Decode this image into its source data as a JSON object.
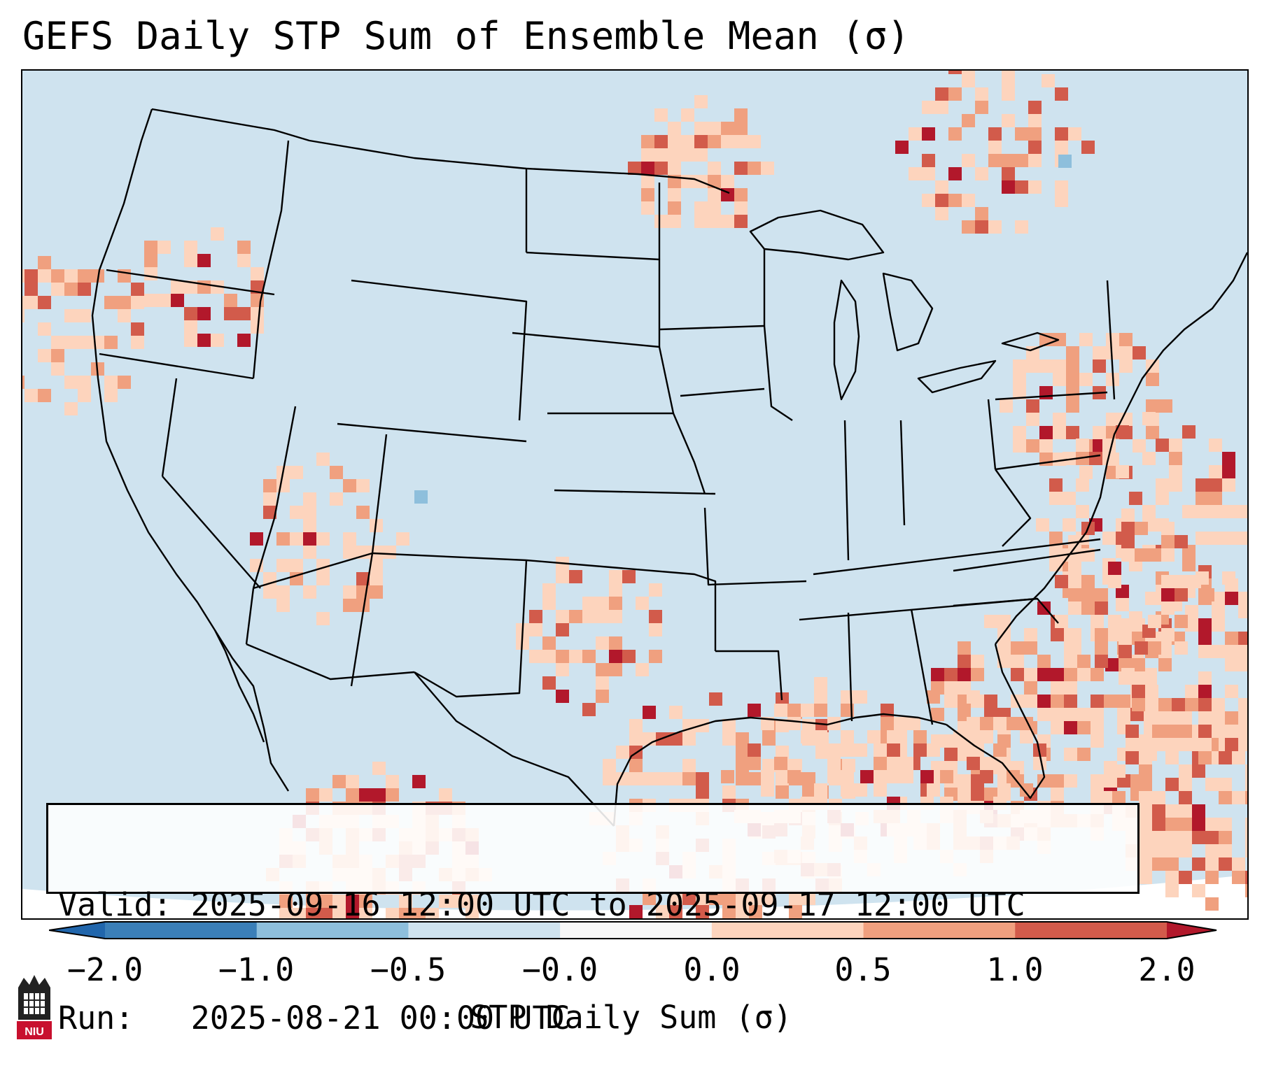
{
  "title": "GEFS Daily STP Sum of Ensemble Mean (σ)",
  "info": {
    "valid_label": "Valid:",
    "valid_text": "2025-09-16 12:00 UTC to 2025-09-17 12:00 UTC",
    "run_label": "Run:",
    "run_text": "2025-08-21 00:00 UTC"
  },
  "colorbar": {
    "label": "STP Daily Sum (σ)",
    "ticks": [
      "−2.0",
      "−1.0",
      "−0.5",
      "−0.0",
      "0.0",
      "0.5",
      "1.0",
      "2.0"
    ],
    "colors": [
      "#3b7fb8",
      "#8ebfdc",
      "#cfe3ef",
      "#f7f7f7",
      "#fdd4bd",
      "#f0a07f",
      "#d25b4b",
      "#b2182b"
    ],
    "under_color": "#2166ac",
    "over_color": "#b2182b"
  },
  "logo": {
    "text": "NIU",
    "icon": "niu-logo-icon"
  },
  "map": {
    "background_color": "#cfe3ef",
    "ocean_note": "",
    "legend_colors": {
      "low": "#fdd4bd",
      "mid": "#f0a07f",
      "high": "#d25b4b",
      "max": "#b2182b",
      "neg": "#8ebfdc"
    }
  }
}
